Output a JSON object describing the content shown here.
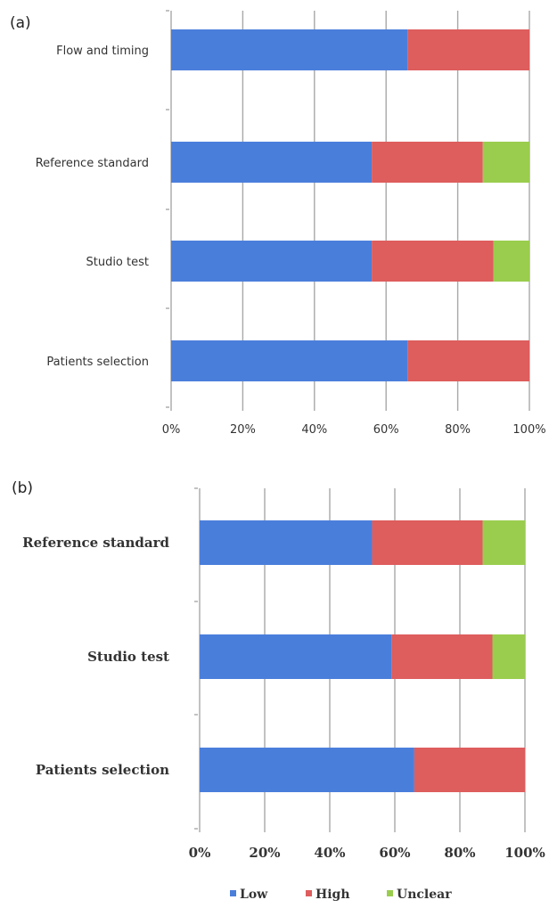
{
  "legend": [
    {
      "label": "Low",
      "color": "#4A7EDB"
    },
    {
      "label": "High",
      "color": "#DE5D5D"
    },
    {
      "label": "Unclear",
      "color": "#9ACD4E"
    }
  ],
  "chart_data": [
    {
      "type": "bar",
      "stacked": true,
      "orientation": "horizontal",
      "panel_label": "(a)",
      "categories": [
        "Flow and timing",
        "Reference standard",
        "Studio test",
        "Patients selection"
      ],
      "series": [
        {
          "name": "Low",
          "values": [
            66,
            56,
            56,
            66
          ]
        },
        {
          "name": "High",
          "values": [
            34,
            31,
            34,
            34
          ]
        },
        {
          "name": "Unclear",
          "values": [
            0,
            13,
            10,
            0
          ]
        }
      ],
      "xlim": [
        0,
        100
      ],
      "xticks": [
        "0%",
        "20%",
        "40%",
        "60%",
        "80%",
        "100%"
      ],
      "grid": true
    },
    {
      "type": "bar",
      "stacked": true,
      "orientation": "horizontal",
      "panel_label": "(b)",
      "categories": [
        "Reference standard",
        "Studio test",
        "Patients selection"
      ],
      "series": [
        {
          "name": "Low",
          "values": [
            53,
            59,
            66
          ]
        },
        {
          "name": "High",
          "values": [
            34,
            31,
            34
          ]
        },
        {
          "name": "Unclear",
          "values": [
            13,
            10,
            0
          ]
        }
      ],
      "xlim": [
        0,
        100
      ],
      "xticks": [
        "0%",
        "20%",
        "40%",
        "60%",
        "80%",
        "100%"
      ],
      "grid": true,
      "legend_position": "bottom"
    }
  ]
}
